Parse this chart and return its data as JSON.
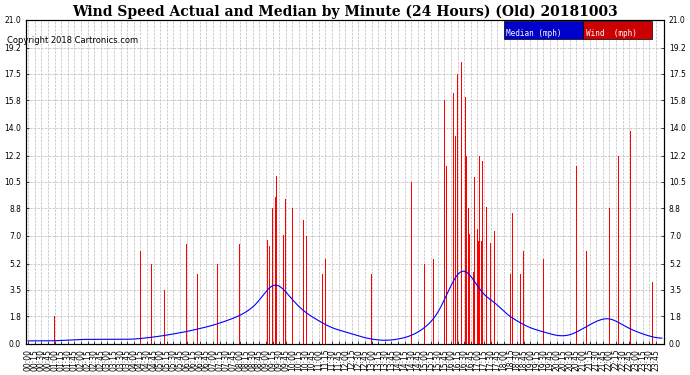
{
  "title": "Wind Speed Actual and Median by Minute (24 Hours) (Old) 20181003",
  "copyright": "Copyright 2018 Cartronics.com",
  "legend_median_label": "Median (mph)",
  "legend_wind_label": "Wind  (mph)",
  "bar_color": "#ff0000",
  "line_color": "#0000ff",
  "background_color": "#ffffff",
  "plot_bg_color": "#ffffff",
  "grid_color": "#bbbbbb",
  "yticks": [
    0.0,
    1.8,
    3.5,
    5.2,
    7.0,
    8.8,
    10.5,
    12.2,
    14.0,
    15.8,
    17.5,
    19.2,
    21.0
  ],
  "ylim": [
    0,
    21.0
  ],
  "title_fontsize": 10,
  "tick_fontsize": 5.5,
  "copyright_fontsize": 6
}
